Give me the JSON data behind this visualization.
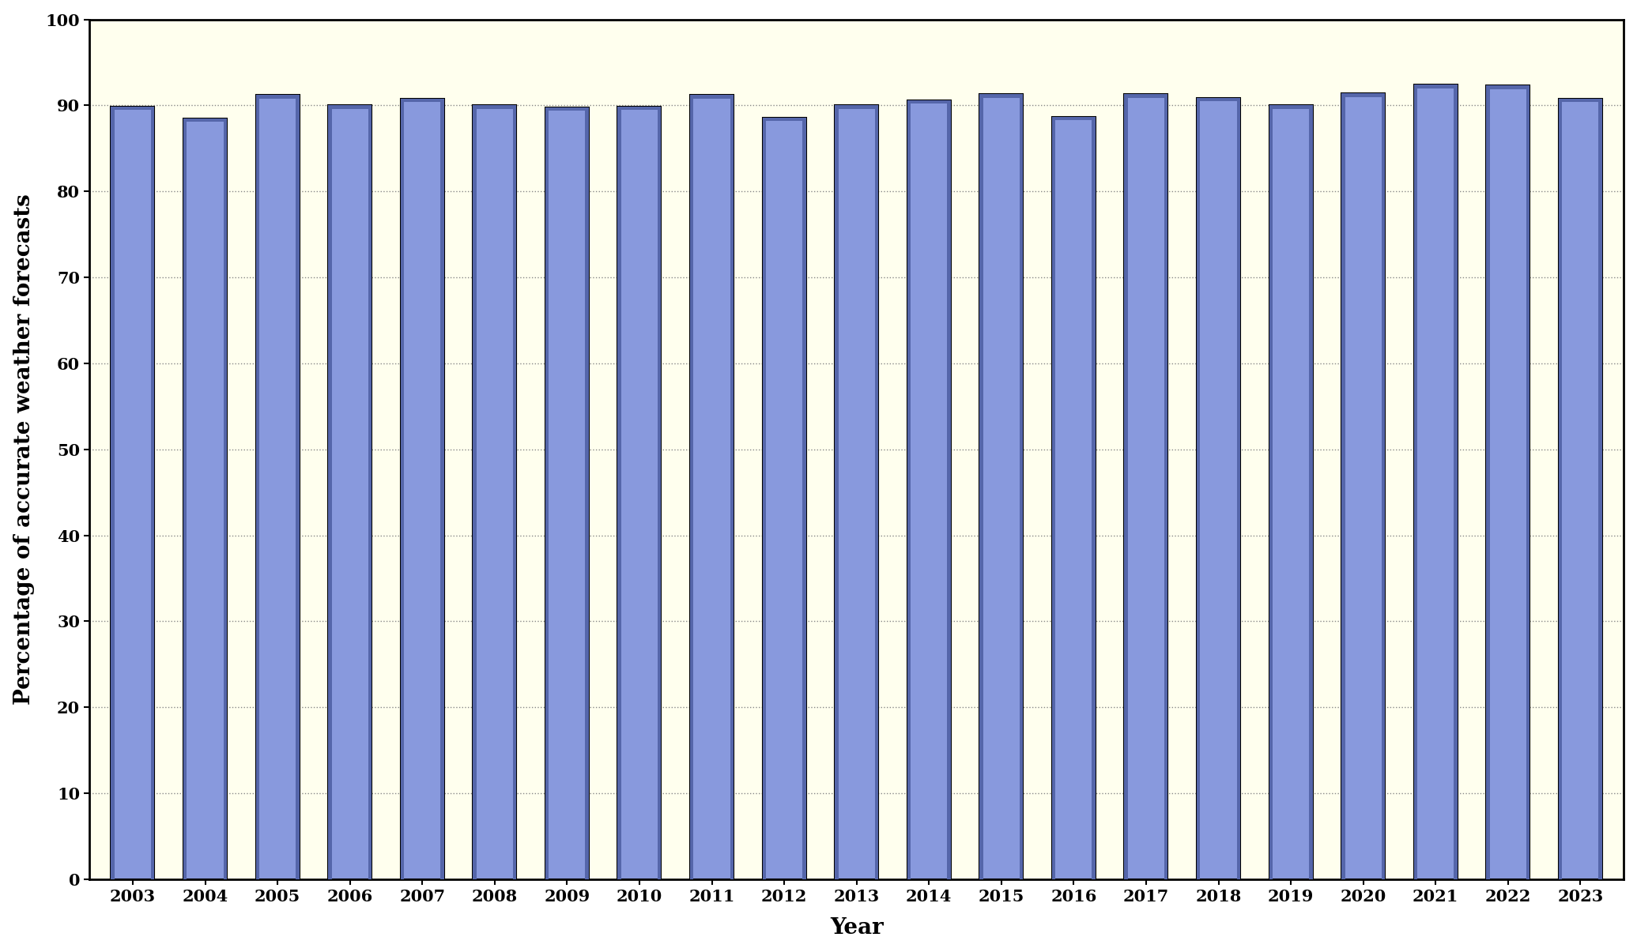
{
  "years": [
    2003,
    2004,
    2005,
    2006,
    2007,
    2008,
    2009,
    2010,
    2011,
    2012,
    2013,
    2014,
    2015,
    2016,
    2017,
    2018,
    2019,
    2020,
    2021,
    2022,
    2023
  ],
  "values": [
    89.9,
    88.5,
    91.2,
    90.0,
    90.8,
    90.0,
    89.8,
    89.9,
    91.2,
    88.6,
    90.0,
    90.6,
    91.3,
    88.7,
    91.3,
    90.9,
    90.0,
    91.4,
    92.4,
    92.3,
    90.8
  ],
  "bar_color_main": "#8899dd",
  "bar_color_light": "#aabbee",
  "bar_color_dark": "#5566aa",
  "bar_edge_color": "#000000",
  "bar_edge_width": 1.5,
  "background_color": "#ffffee",
  "fig_background_color": "#ffffff",
  "ylabel": "Percentage of accurate weather forecasts",
  "xlabel": "Year",
  "ylim": [
    0,
    100
  ],
  "yticks": [
    0,
    10,
    20,
    30,
    40,
    50,
    60,
    70,
    80,
    90,
    100
  ],
  "grid_color": "#888888",
  "axis_label_fontsize": 20,
  "tick_label_fontsize": 15,
  "bar_width": 0.6
}
